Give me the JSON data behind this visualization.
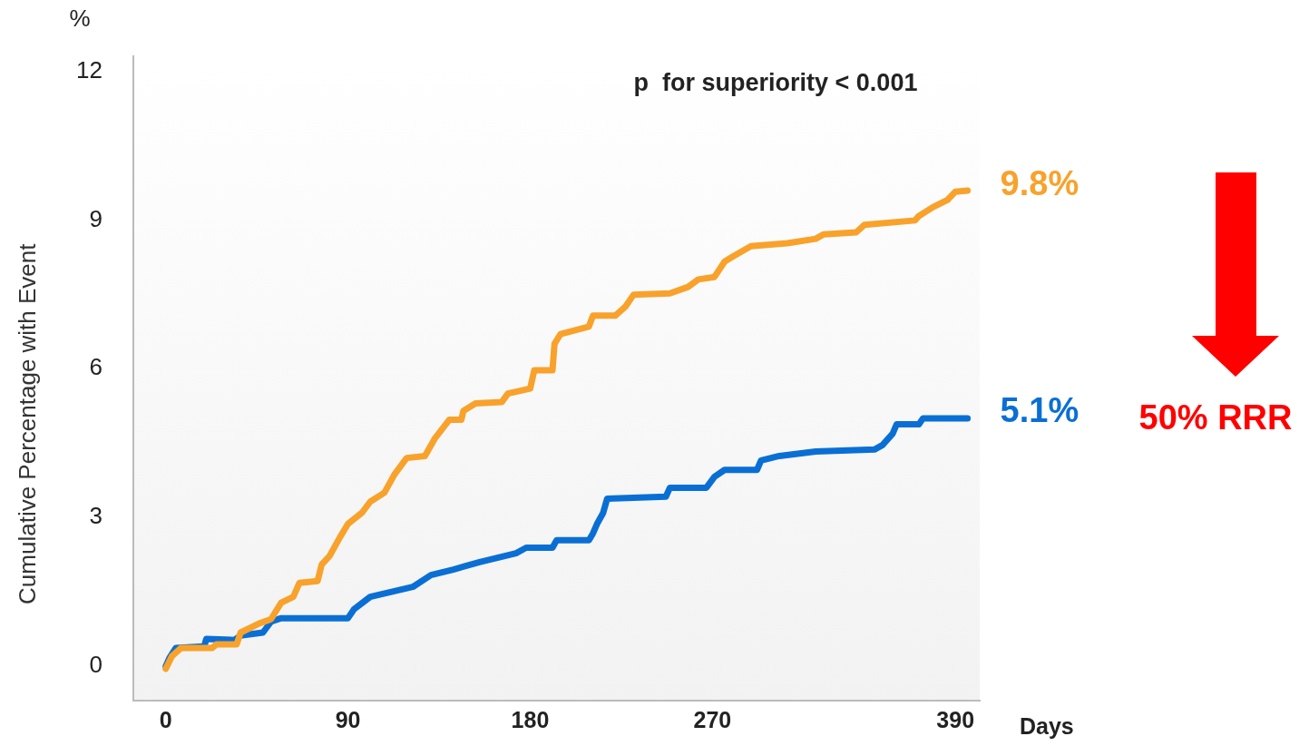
{
  "chart_data": {
    "type": "line",
    "xlabel": "Days",
    "ylabel": "Cumulative Percentage with Event",
    "xlim": [
      -16,
      402
    ],
    "xticks": [
      0,
      90,
      180,
      270,
      390
    ],
    "ylim": [
      -0.7,
      12.3
    ],
    "yticks": [
      0,
      3,
      6,
      9,
      12
    ],
    "grid": false,
    "legend": false,
    "marker": "none",
    "line_style": "solid",
    "series": [
      {
        "color": "#f8a22c",
        "x": [
          0,
          3,
          7.6,
          23,
          25,
          35,
          37,
          46,
          52,
          57,
          63,
          66,
          75,
          77,
          81,
          86,
          90,
          97,
          101,
          108,
          113,
          119,
          128,
          133,
          140,
          146,
          147,
          153,
          166,
          169,
          180,
          182,
          191,
          192,
          195,
          209,
          211,
          222,
          227,
          231,
          249,
          258,
          263,
          271,
          276,
          280,
          289,
          307,
          321,
          325,
          341,
          345,
          370,
          372,
          379,
          386,
          390,
          396
        ],
        "values": [
          -0.05,
          0.2,
          0.37,
          0.37,
          0.44,
          0.44,
          0.68,
          0.86,
          0.95,
          1.28,
          1.4,
          1.68,
          1.72,
          2.05,
          2.23,
          2.6,
          2.87,
          3.1,
          3.32,
          3.5,
          3.87,
          4.2,
          4.24,
          4.6,
          4.97,
          4.97,
          5.15,
          5.3,
          5.33,
          5.5,
          5.6,
          5.97,
          5.97,
          6.5,
          6.7,
          6.85,
          7.07,
          7.07,
          7.25,
          7.49,
          7.52,
          7.65,
          7.8,
          7.85,
          8.16,
          8.26,
          8.47,
          8.53,
          8.62,
          8.71,
          8.75,
          8.9,
          8.99,
          9.08,
          9.26,
          9.4,
          9.57,
          9.59
        ]
      },
      {
        "color": "#0a6fd4",
        "x": [
          0,
          2,
          5,
          19,
          20,
          34,
          37,
          48,
          52,
          57,
          90,
          93,
          101,
          122,
          131,
          142,
          155,
          173,
          178,
          191,
          193,
          209,
          211,
          213,
          216,
          218,
          247,
          249,
          267,
          271,
          276,
          292,
          294,
          303,
          321,
          350,
          354,
          359,
          361,
          372,
          374,
          396
        ],
        "values": [
          0,
          0.18,
          0.37,
          0.4,
          0.55,
          0.53,
          0.62,
          0.68,
          0.9,
          0.97,
          0.97,
          1.15,
          1.4,
          1.6,
          1.84,
          1.95,
          2.1,
          2.28,
          2.39,
          2.39,
          2.54,
          2.54,
          2.68,
          2.87,
          3.09,
          3.38,
          3.42,
          3.6,
          3.6,
          3.82,
          3.96,
          3.96,
          4.15,
          4.24,
          4.33,
          4.37,
          4.46,
          4.69,
          4.88,
          4.88,
          5.0,
          5.0
        ]
      }
    ],
    "annotations": [
      "%",
      "p  for superiority < 0.001",
      {
        "text": "9.8%",
        "x": 396,
        "y": 9.59
      },
      {
        "text": "5.1%",
        "x": 396,
        "y": 5.0
      },
      "50% RRR"
    ]
  }
}
